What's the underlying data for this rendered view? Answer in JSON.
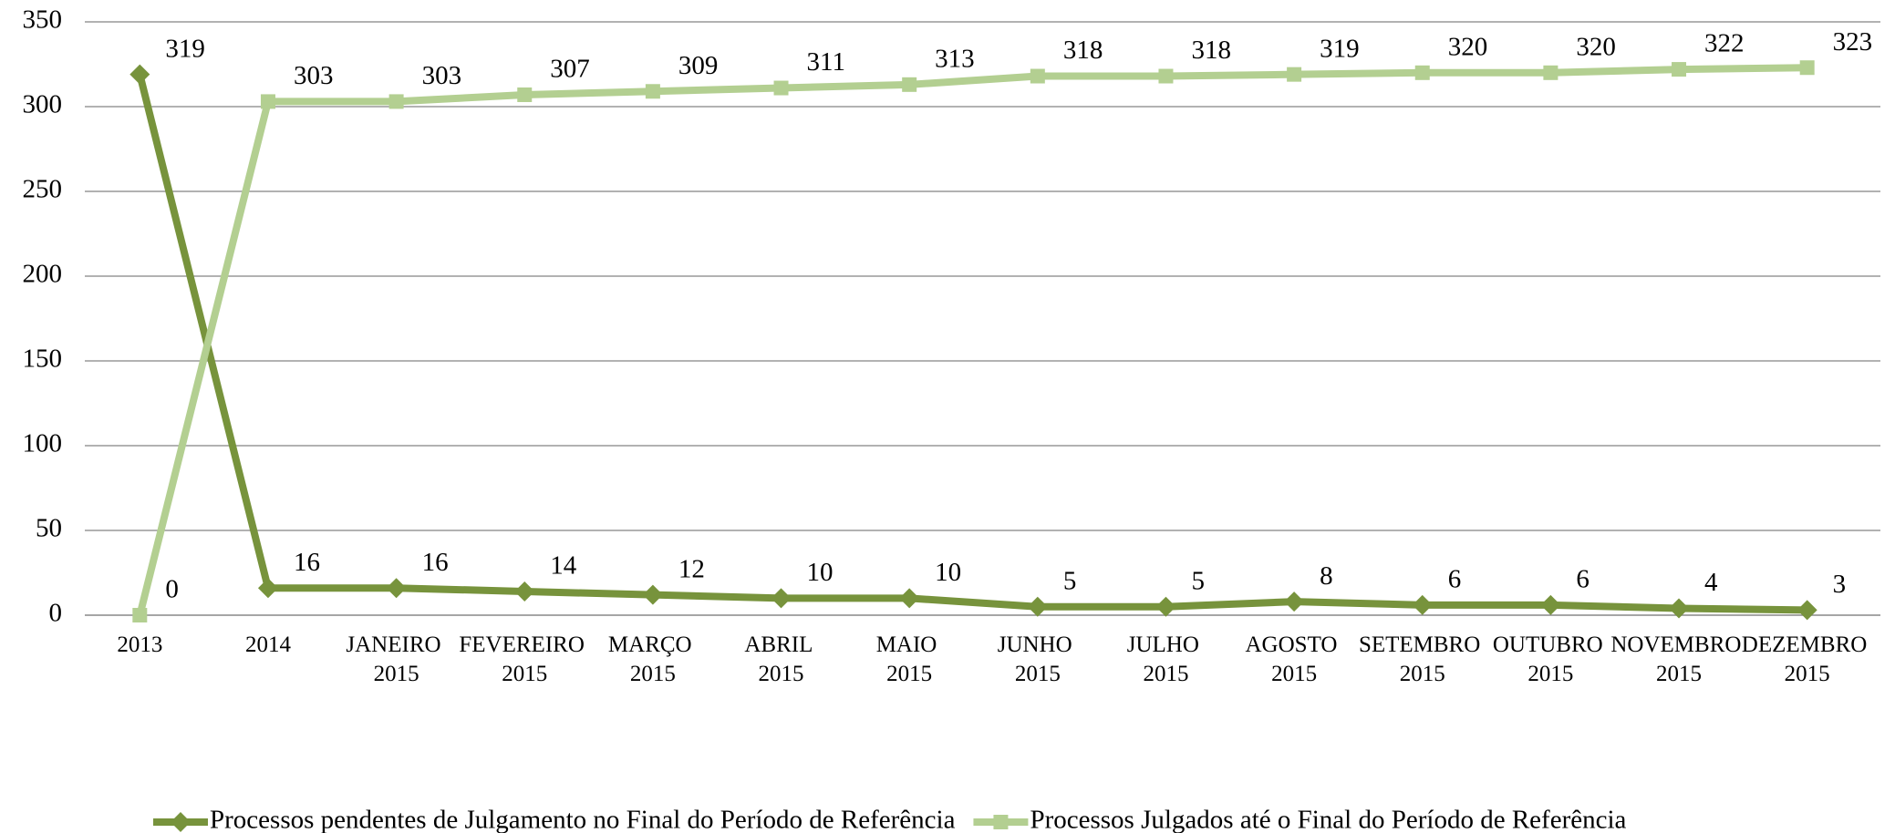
{
  "chart_data": {
    "type": "line",
    "categories": [
      "2013",
      "2014",
      "JANEIRO 2015",
      "FEVEREIRO 2015",
      "MARÇO 2015",
      "ABRIL 2015",
      "MAIO 2015",
      "JUNHO 2015",
      "JULHO 2015",
      "AGOSTO 2015",
      "SETEMBRO 2015",
      "OUTUBRO 2015",
      "NOVEMBRO 2015",
      "DEZEMBRO 2015"
    ],
    "series": [
      {
        "name": "Processos pendentes de Julgamento no Final do Período de Referência",
        "color": "#77933c",
        "marker": "diamond",
        "values": [
          319,
          16,
          16,
          14,
          12,
          10,
          10,
          5,
          5,
          8,
          6,
          6,
          4,
          3
        ]
      },
      {
        "name": "Processos Julgados até o Final do Período de Referência",
        "color": "#b3cf91",
        "marker": "square",
        "values": [
          0,
          303,
          303,
          307,
          309,
          311,
          313,
          318,
          318,
          319,
          320,
          320,
          322,
          323
        ]
      }
    ],
    "ylim": [
      0,
      350
    ],
    "yticks": [
      0,
      50,
      100,
      150,
      200,
      250,
      300,
      350
    ],
    "grid": true,
    "legend": "bottom"
  }
}
